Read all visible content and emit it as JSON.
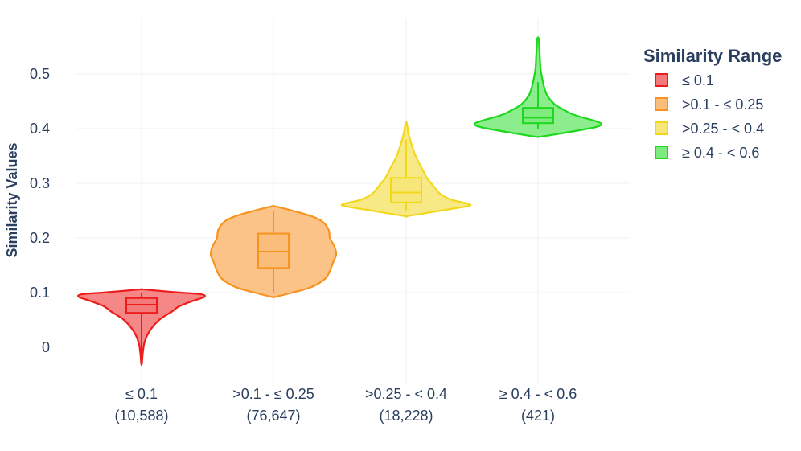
{
  "chart_data": {
    "type": "violin",
    "title": "",
    "xlabel": "",
    "ylabel": "Similarity Values",
    "ylim": [
      -0.06,
      0.6
    ],
    "yticks": [
      0,
      0.1,
      0.2,
      0.3,
      0.4,
      0.5
    ],
    "ytick_labels": [
      "0",
      "0.1",
      "0.2",
      "0.3",
      "0.4",
      "0.5"
    ],
    "grid": true,
    "legend": {
      "title": "Similarity Range",
      "placement": "top-right"
    },
    "series": [
      {
        "name": "≤ 0.1",
        "tick_line1": "≤ 0.1",
        "tick_line2": "(10,588)",
        "color": "#ef1c1c",
        "fill": "#f47a7a",
        "min": -0.03,
        "q1": 0.063,
        "median": 0.078,
        "q3": 0.09,
        "max": 0.1,
        "shape": [
          [
            -0.03,
            0.005
          ],
          [
            -0.01,
            0.02
          ],
          [
            0.01,
            0.05
          ],
          [
            0.03,
            0.13
          ],
          [
            0.05,
            0.28
          ],
          [
            0.065,
            0.48
          ],
          [
            0.075,
            0.6
          ],
          [
            0.085,
            0.82
          ],
          [
            0.092,
            1.0
          ],
          [
            0.097,
            0.95
          ],
          [
            0.1,
            0.62
          ],
          [
            0.104,
            0.2
          ],
          [
            0.106,
            0.02
          ]
        ]
      },
      {
        "name": ">0.1 - ≤ 0.25",
        "tick_line1": ">0.1 - ≤ 0.25",
        "tick_line2": "(76,647)",
        "color": "#f7931e",
        "fill": "#fbbd7a",
        "min": 0.1,
        "q1": 0.145,
        "median": 0.175,
        "q3": 0.208,
        "max": 0.25,
        "shape": [
          [
            0.092,
            0.02
          ],
          [
            0.1,
            0.3
          ],
          [
            0.11,
            0.6
          ],
          [
            0.125,
            0.82
          ],
          [
            0.14,
            0.9
          ],
          [
            0.155,
            0.95
          ],
          [
            0.17,
            1.0
          ],
          [
            0.185,
            0.97
          ],
          [
            0.2,
            0.9
          ],
          [
            0.215,
            0.88
          ],
          [
            0.23,
            0.78
          ],
          [
            0.24,
            0.6
          ],
          [
            0.25,
            0.3
          ],
          [
            0.258,
            0.02
          ]
        ]
      },
      {
        "name": ">0.25 - < 0.4",
        "tick_line1": ">0.25 - < 0.4",
        "tick_line2": "(18,228)",
        "color": "#f2d81a",
        "fill": "#f7e77a",
        "min": 0.248,
        "q1": 0.265,
        "median": 0.283,
        "q3": 0.31,
        "max": 0.38,
        "shape": [
          [
            0.24,
            0.02
          ],
          [
            0.25,
            0.55
          ],
          [
            0.258,
            0.97
          ],
          [
            0.262,
            1.0
          ],
          [
            0.27,
            0.72
          ],
          [
            0.28,
            0.55
          ],
          [
            0.29,
            0.47
          ],
          [
            0.3,
            0.4
          ],
          [
            0.31,
            0.33
          ],
          [
            0.33,
            0.24
          ],
          [
            0.35,
            0.15
          ],
          [
            0.37,
            0.09
          ],
          [
            0.39,
            0.04
          ],
          [
            0.41,
            0.01
          ]
        ]
      },
      {
        "name": "≥ 0.4 - < 0.6",
        "tick_line1": "≥ 0.4 - < 0.6",
        "tick_line2": "(421)",
        "color": "#1ed81e",
        "fill": "#7eeb7e",
        "min": 0.4,
        "q1": 0.41,
        "median": 0.42,
        "q3": 0.438,
        "max": 0.485,
        "shape": [
          [
            0.385,
            0.02
          ],
          [
            0.39,
            0.3
          ],
          [
            0.4,
            0.8
          ],
          [
            0.405,
            0.98
          ],
          [
            0.41,
            1.0
          ],
          [
            0.415,
            0.88
          ],
          [
            0.425,
            0.58
          ],
          [
            0.435,
            0.4
          ],
          [
            0.445,
            0.26
          ],
          [
            0.46,
            0.15
          ],
          [
            0.475,
            0.1
          ],
          [
            0.49,
            0.07
          ],
          [
            0.51,
            0.04
          ],
          [
            0.53,
            0.03
          ],
          [
            0.55,
            0.02
          ],
          [
            0.565,
            0.01
          ]
        ]
      }
    ]
  }
}
